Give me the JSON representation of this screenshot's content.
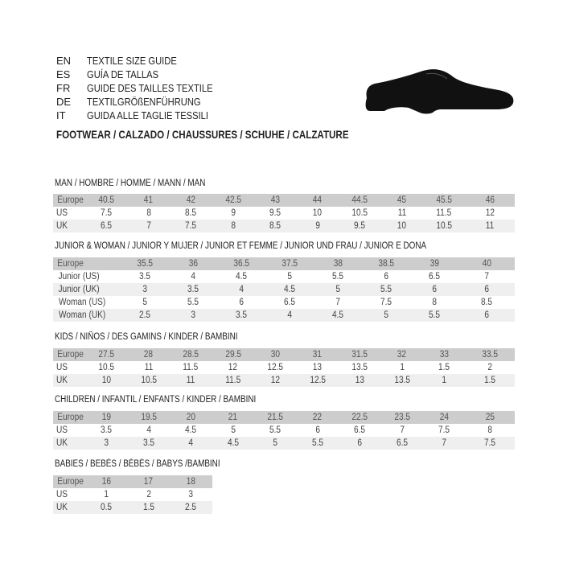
{
  "languages": [
    {
      "code": "EN",
      "text": "TEXTILE SIZE GUIDE"
    },
    {
      "code": "ES",
      "text": "GUÍA DE TALLAS"
    },
    {
      "code": "FR",
      "text": "GUIDE DES TAILLES TEXTILE"
    },
    {
      "code": "DE",
      "text": "TEXTILGRÖßENFÜHRUNG"
    },
    {
      "code": "IT",
      "text": "GUIDA ALLE TAGLIE TESSILI"
    }
  ],
  "footwear_title": "FOOTWEAR / CALZADO / CHAUSSURES / SCHUHE / CALZATURE",
  "shoe_icon": "shoe-icon",
  "colors": {
    "header_row": "#cdcdcd",
    "alt_row": "#efefef"
  },
  "sections": [
    {
      "title": "MAN / HOMBRE / HOMME / MANN / MAN",
      "rows": [
        {
          "label": "Europe",
          "values": [
            "40.5",
            "41",
            "42",
            "42.5",
            "43",
            "44",
            "44.5",
            "45",
            "45.5",
            "46"
          ]
        },
        {
          "label": "US",
          "values": [
            "7.5",
            "8",
            "8.5",
            "9",
            "9.5",
            "10",
            "10.5",
            "11",
            "11.5",
            "12"
          ]
        },
        {
          "label": "UK",
          "values": [
            "6.5",
            "7",
            "7.5",
            "8",
            "8.5",
            "9",
            "9.5",
            "10",
            "10.5",
            "11"
          ]
        }
      ]
    },
    {
      "title": "JUNIOR & WOMAN / JUNIOR Y MUJER / JUNIOR ET FEMME / JUNIOR UND FRAU / JUNIOR E DONA",
      "rows": [
        {
          "label": "Europe",
          "values": [
            "35.5",
            "36",
            "36.5",
            "37.5",
            "38",
            "38.5",
            "39",
            "40"
          ]
        },
        {
          "label": "Junior (US)",
          "values": [
            "3.5",
            "4",
            "4.5",
            "5",
            "5.5",
            "6",
            "6.5",
            "7"
          ]
        },
        {
          "label": "Junior (UK)",
          "values": [
            "3",
            "3.5",
            "4",
            "4.5",
            "5",
            "5.5",
            "6",
            "6"
          ]
        },
        {
          "label": "Woman (US)",
          "values": [
            "5",
            "5.5",
            "6",
            "6.5",
            "7",
            "7.5",
            "8",
            "8.5"
          ]
        },
        {
          "label": "Woman (UK)",
          "values": [
            "2.5",
            "3",
            "3.5",
            "4",
            "4.5",
            "5",
            "5.5",
            "6"
          ]
        }
      ]
    },
    {
      "title": "KIDS / NIÑOS / DES GAMINS / KINDER / BAMBINI",
      "rows": [
        {
          "label": "Europe",
          "values": [
            "27.5",
            "28",
            "28.5",
            "29.5",
            "30",
            "31",
            "31.5",
            "32",
            "33",
            "33.5"
          ]
        },
        {
          "label": "US",
          "values": [
            "10.5",
            "11",
            "11.5",
            "12",
            "12.5",
            "13",
            "13.5",
            "1",
            "1.5",
            "2"
          ]
        },
        {
          "label": "UK",
          "values": [
            "10",
            "10.5",
            "11",
            "11.5",
            "12",
            "12.5",
            "13",
            "13.5",
            "1",
            "1.5"
          ]
        }
      ]
    },
    {
      "title": "CHILDREN / INFANTIL / ENFANTS / KINDER / BAMBINI",
      "rows": [
        {
          "label": "Europe",
          "values": [
            "19",
            "19.5",
            "20",
            "21",
            "21.5",
            "22",
            "22.5",
            "23.5",
            "24",
            "25"
          ]
        },
        {
          "label": "US",
          "values": [
            "3.5",
            "4",
            "4.5",
            "5",
            "5.5",
            "6",
            "6.5",
            "7",
            "7.5",
            "8"
          ]
        },
        {
          "label": "UK",
          "values": [
            "3",
            "3.5",
            "4",
            "4.5",
            "5",
            "5.5",
            "6",
            "6.5",
            "7",
            "7.5"
          ]
        }
      ]
    },
    {
      "title": "BABIES  / BEBÉS / BÉBÉS / BABYS /BAMBINI",
      "rows": [
        {
          "label": "Europe",
          "values": [
            "16",
            "17",
            "18"
          ]
        },
        {
          "label": "US",
          "values": [
            "1",
            "2",
            "3"
          ]
        },
        {
          "label": "UK",
          "values": [
            "0.5",
            "1.5",
            "2.5"
          ]
        }
      ]
    }
  ]
}
